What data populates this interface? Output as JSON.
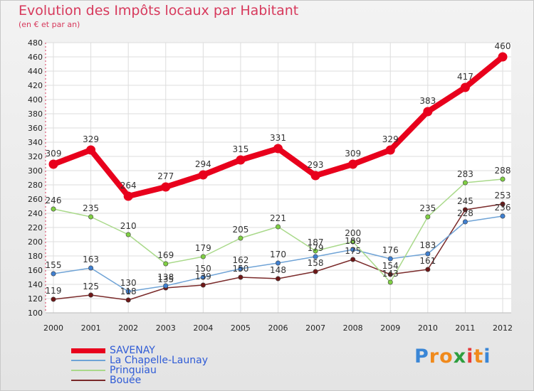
{
  "title": "Evolution des Impôts locaux par Habitant",
  "subtitle": "(en € et par an)",
  "logo": {
    "text": "Proxiti",
    "letters": [
      "P",
      "r",
      "o",
      "x",
      "i",
      "t",
      "i"
    ],
    "colors": [
      "#3a86d6",
      "#f08a1c",
      "#f08a1c",
      "#2e9e3f",
      "#e63b3b",
      "#f08a1c",
      "#3a86d6"
    ]
  },
  "chart_data": {
    "type": "line",
    "title": "Evolution des Impôts locaux par Habitant",
    "subtitle": "(en € et par an)",
    "xlabel": "",
    "ylabel": "",
    "x": [
      "2000",
      "2001",
      "2002",
      "2003",
      "2004",
      "2005",
      "2006",
      "2007",
      "2008",
      "2009",
      "2010",
      "2011",
      "2012"
    ],
    "ylim": [
      100,
      480
    ],
    "yticks": [
      100,
      120,
      140,
      160,
      180,
      200,
      220,
      240,
      260,
      280,
      300,
      320,
      340,
      360,
      380,
      400,
      420,
      440,
      460,
      480
    ],
    "grid": true,
    "legend_position": "bottom-left",
    "series": [
      {
        "name": "SAVENAY",
        "color": "#e8001c",
        "width": 8,
        "values": [
          309,
          329,
          264,
          277,
          294,
          315,
          331,
          293,
          309,
          329,
          383,
          417,
          460
        ],
        "labels": [
          "309",
          "329",
          "264",
          "277",
          "294",
          "315",
          "331",
          "293",
          "309",
          "329",
          "383",
          "417",
          "460"
        ]
      },
      {
        "name": "La Chapelle-Launay",
        "color": "#6fa3d6",
        "dot": "#3f7fd0",
        "width": 1.5,
        "values": [
          155,
          163,
          130,
          138,
          150,
          162,
          170,
          179,
          189,
          176,
          183,
          228,
          236
        ],
        "labels": [
          "155",
          "163",
          "130",
          "138",
          "150",
          "162",
          "170",
          "179",
          "189",
          "176",
          "183",
          "228",
          "236"
        ]
      },
      {
        "name": "Prinquiau",
        "color": "#a9d98a",
        "dot": "#7fcf43",
        "width": 1.5,
        "values": [
          246,
          235,
          210,
          169,
          179,
          205,
          221,
          187,
          200,
          143,
          235,
          283,
          288
        ],
        "labels": [
          "246",
          "235",
          "210",
          "169",
          "179",
          "205",
          "221",
          "187",
          "200",
          "143",
          "235",
          "283",
          "288"
        ]
      },
      {
        "name": "Bouée",
        "color": "#7a2a2a",
        "dot": "#6e1717",
        "width": 1.5,
        "values": [
          119,
          125,
          118,
          135,
          139,
          150,
          148,
          158,
          175,
          154,
          161,
          245,
          253
        ],
        "labels": [
          "119",
          "125",
          "118",
          "135",
          "139",
          "150",
          "148",
          "158",
          "175",
          "154",
          "161",
          "245",
          "253"
        ]
      }
    ]
  }
}
